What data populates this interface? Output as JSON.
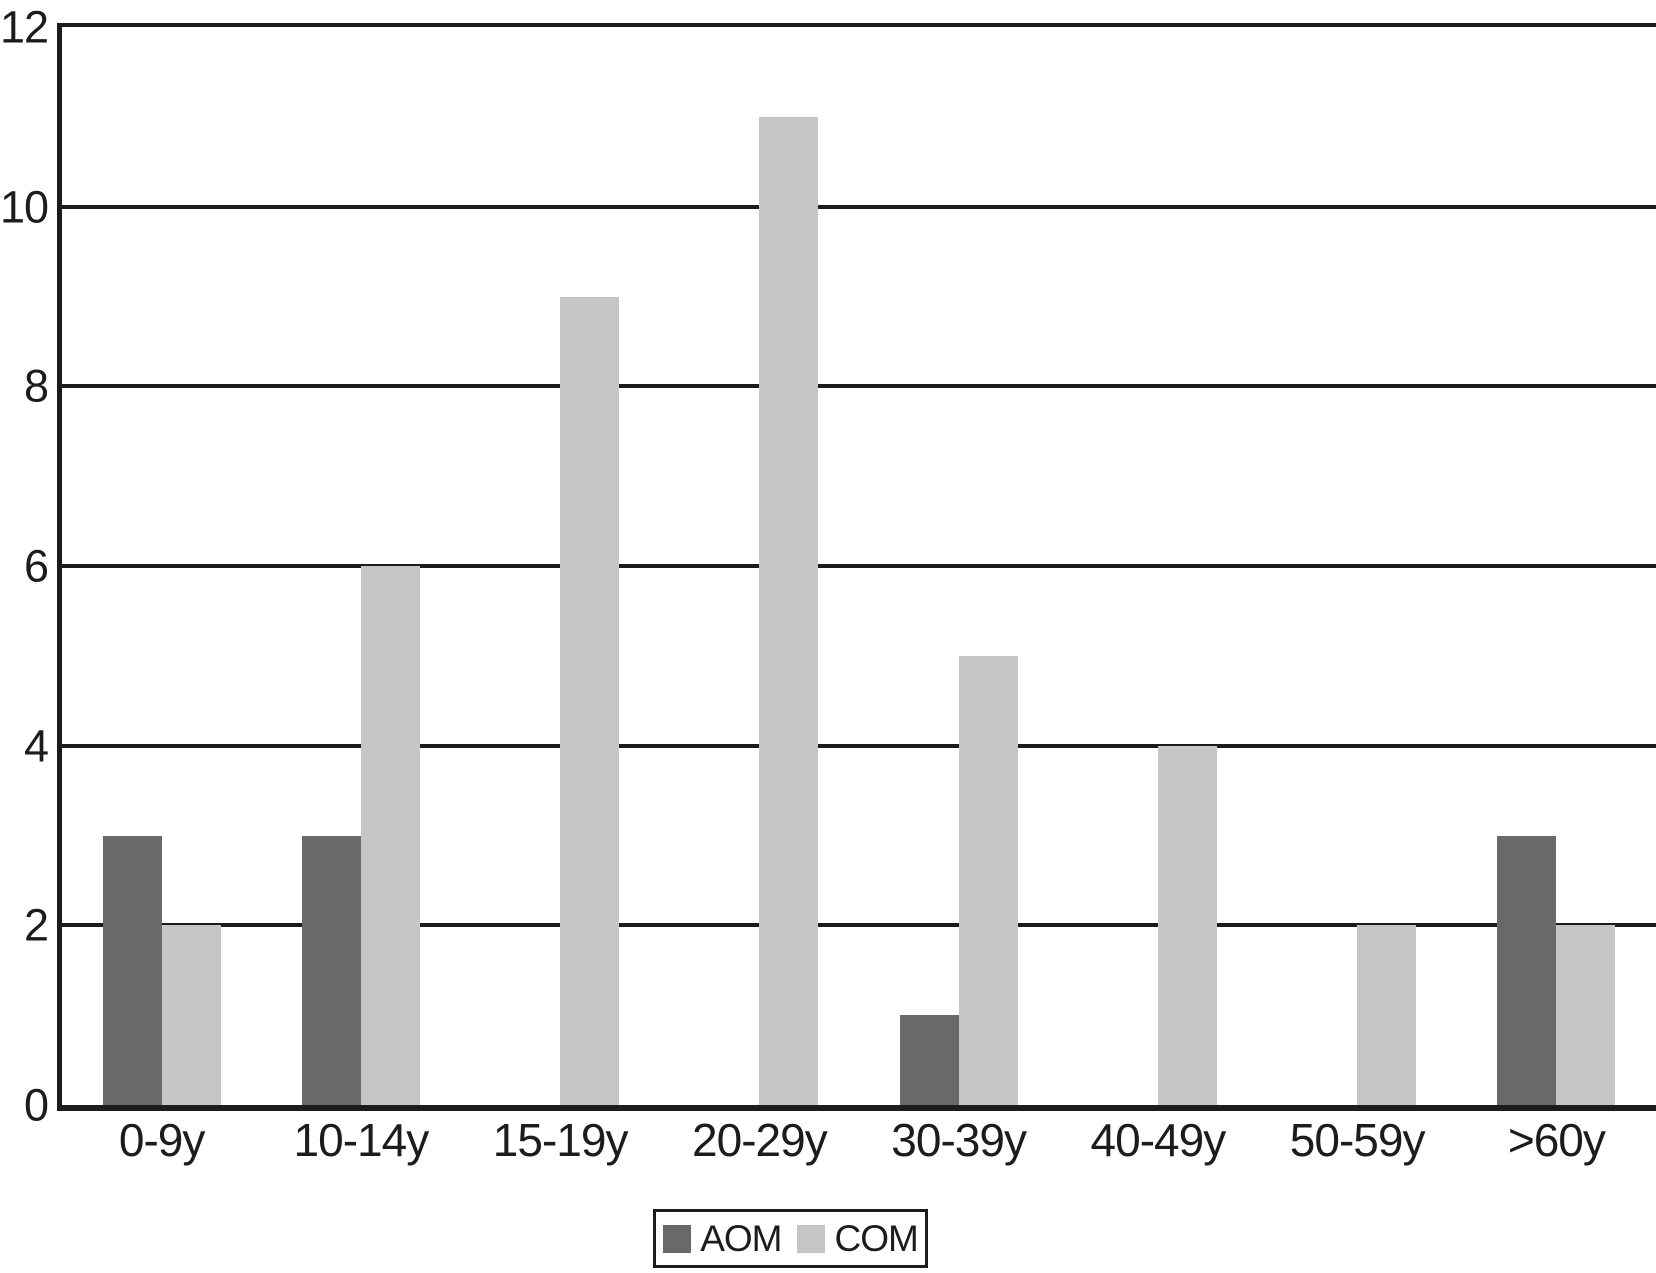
{
  "chart_data": {
    "type": "bar",
    "categories": [
      "0-9y",
      "10-14y",
      "15-19y",
      "20-29y",
      "30-39y",
      "40-49y",
      "50-59y",
      ">60y"
    ],
    "series": [
      {
        "name": "AOM",
        "color": "#67696b",
        "values": [
          3,
          3,
          0,
          0,
          1,
          0,
          0,
          3
        ]
      },
      {
        "name": "COM",
        "color": "#c5c6c8",
        "values": [
          2,
          6,
          9,
          11,
          5,
          4,
          2,
          2
        ]
      }
    ],
    "title": "",
    "xlabel": "",
    "ylabel": "",
    "ylim": [
      0,
      12
    ],
    "yticks": [
      0,
      2,
      4,
      6,
      8,
      10,
      12
    ],
    "grid": true,
    "legend_position": "bottom",
    "axis_color": "#1c1c1e",
    "background_color": "#ffffff"
  }
}
